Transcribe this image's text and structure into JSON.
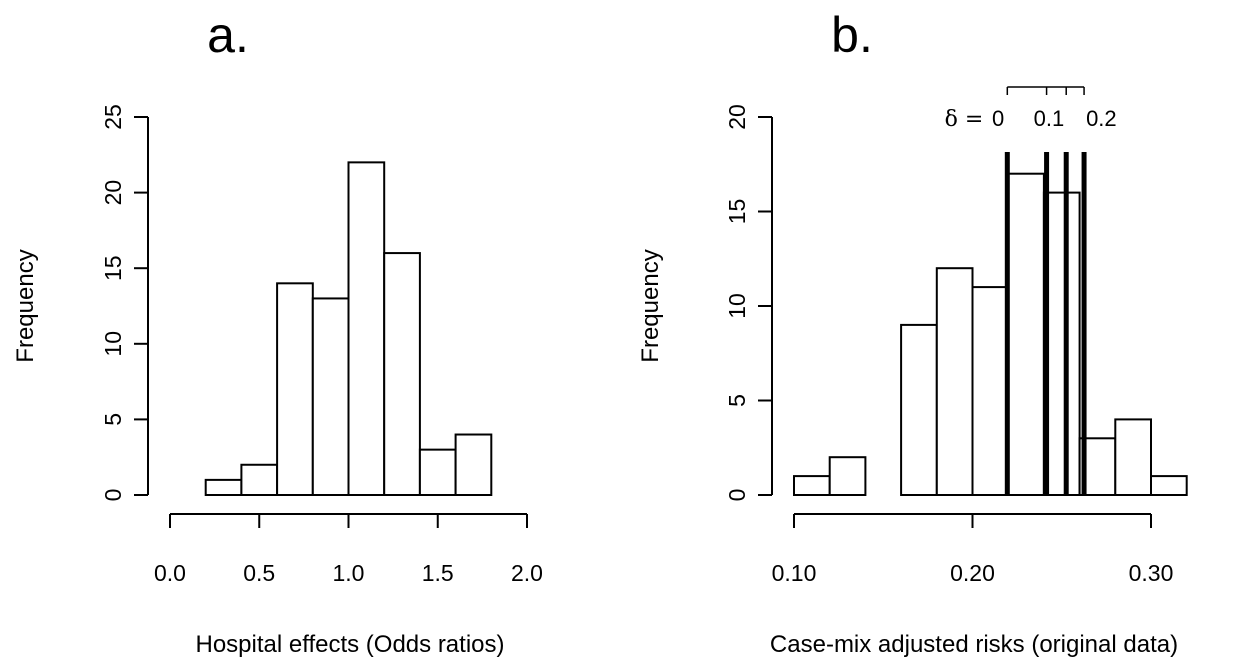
{
  "chart_data": [
    {
      "type": "bar",
      "panel_label": "a.",
      "xlabel": "Hospital effects (Odds ratios)",
      "ylabel": "Frequency",
      "bin_edges": [
        0.2,
        0.4,
        0.6,
        0.8,
        1.0,
        1.2,
        1.4,
        1.6,
        1.8
      ],
      "values": [
        1,
        2,
        14,
        13,
        22,
        16,
        3,
        4
      ],
      "xlim": [
        0.0,
        2.0
      ],
      "ylim": [
        0,
        25
      ],
      "x_ticks": [
        0.0,
        0.5,
        1.0,
        1.5,
        2.0
      ],
      "x_tick_labels": [
        "0.0",
        "0.5",
        "1.0",
        "1.5",
        "2.0"
      ],
      "y_ticks": [
        0,
        5,
        10,
        15,
        20,
        25
      ],
      "y_tick_labels": [
        "0",
        "5",
        "10",
        "15",
        "20",
        "25"
      ],
      "grid": false
    },
    {
      "type": "bar",
      "panel_label": "b.",
      "xlabel": "Case-mix adjusted risks (original data)",
      "ylabel": "Frequency",
      "bin_edges": [
        0.1,
        0.12,
        0.14,
        0.16,
        0.18,
        0.2,
        0.22,
        0.24,
        0.26,
        0.28,
        0.3,
        0.32
      ],
      "values": [
        1,
        2,
        0,
        9,
        12,
        11,
        17,
        16,
        3,
        4,
        1
      ],
      "xlim": [
        0.1,
        0.3
      ],
      "ylim": [
        0,
        20
      ],
      "x_ticks": [
        0.1,
        0.2,
        0.3
      ],
      "x_tick_labels": [
        "0.10",
        "0.20",
        "0.30"
      ],
      "y_ticks": [
        0,
        5,
        10,
        15,
        20
      ],
      "y_tick_labels": [
        "0",
        "5",
        "10",
        "15",
        "20"
      ],
      "grid": false,
      "reference_lines": {
        "symbol": "δ =",
        "x_values": [
          0.2195,
          0.2415,
          0.2525,
          0.2625
        ],
        "labels": [
          "0",
          "0.1",
          "0.2"
        ],
        "label_x_values": [
          0.2195,
          0.2525,
          0.2625
        ]
      }
    }
  ]
}
